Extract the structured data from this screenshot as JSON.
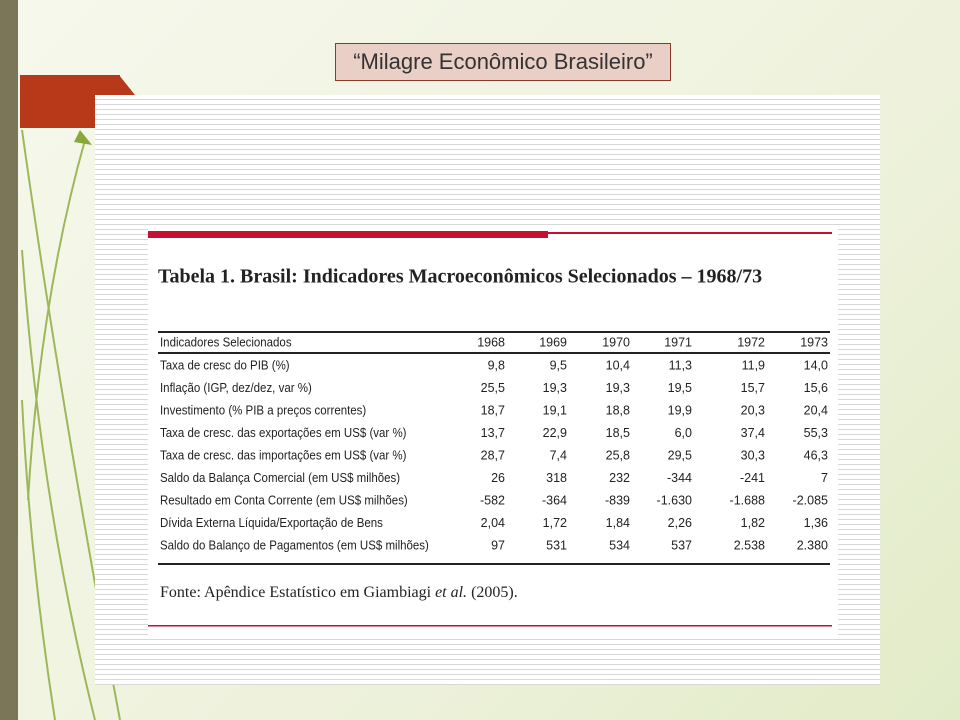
{
  "slide_title": "“Milagre Econômico Brasileiro”",
  "table": {
    "title": "Tabela 1. Brasil: Indicadores Macroeconômicos Selecionados – 1968/73",
    "header": [
      "Indicadores Selecionados",
      "1968",
      "1969",
      "1970",
      "1971",
      "1972",
      "1973"
    ],
    "rows": [
      [
        "Taxa de cresc do PIB (%)",
        "9,8",
        "9,5",
        "10,4",
        "11,3",
        "11,9",
        "14,0"
      ],
      [
        "Inflação (IGP, dez/dez, var %)",
        "25,5",
        "19,3",
        "19,3",
        "19,5",
        "15,7",
        "15,6"
      ],
      [
        "Investimento (% PIB a preços correntes)",
        "18,7",
        "19,1",
        "18,8",
        "19,9",
        "20,3",
        "20,4"
      ],
      [
        "Taxa de cresc. das exportações em US$ (var %)",
        "13,7",
        "22,9",
        "18,5",
        "6,0",
        "37,4",
        "55,3"
      ],
      [
        "Taxa de cresc. das importações em US$ (var %)",
        "28,7",
        "7,4",
        "25,8",
        "29,5",
        "30,3",
        "46,3"
      ],
      [
        "Saldo da Balança Comercial (em US$ milhões)",
        "26",
        "318",
        "232",
        "-344",
        "-241",
        "7"
      ],
      [
        "Resultado em Conta Corrente (em US$ milhões)",
        "-582",
        "-364",
        "-839",
        "-1.630",
        "-1.688",
        "-2.085"
      ],
      [
        "Dívida Externa Líquida/Exportação de Bens",
        "2,04",
        "1,72",
        "1,84",
        "2,26",
        "1,82",
        "1,36"
      ],
      [
        "Saldo do Balanço de Pagamentos (em US$ milhões)",
        "97",
        "531",
        "534",
        "537",
        "2.538",
        "2.380"
      ]
    ],
    "source": [
      "Fonte: Apêndice Estatístico em Giambiagi ",
      "et al.",
      " (2005)."
    ]
  }
}
